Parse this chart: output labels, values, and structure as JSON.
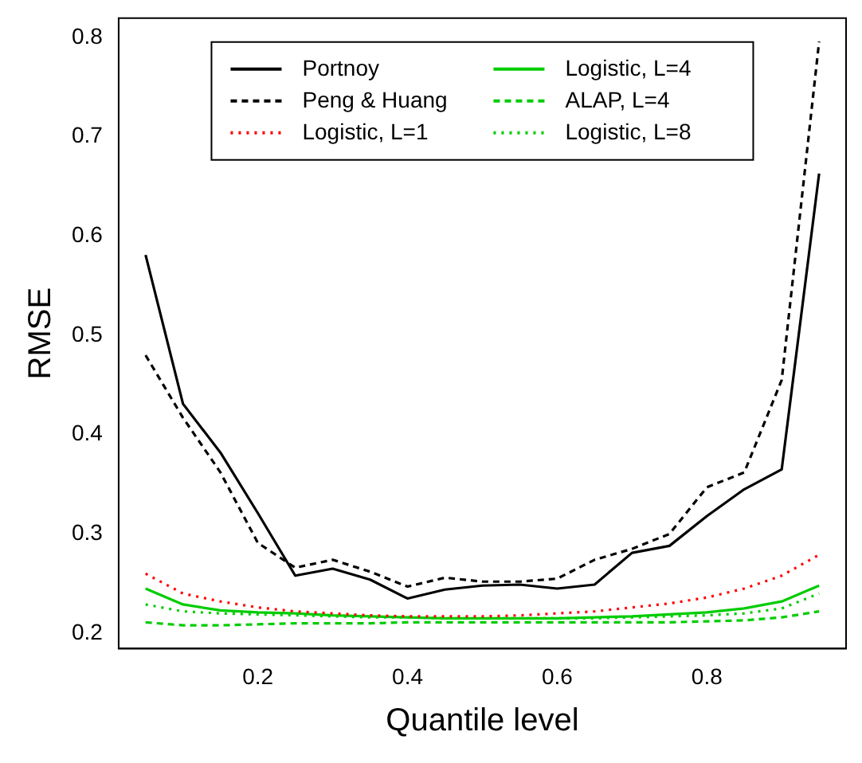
{
  "chart_data": {
    "type": "line",
    "xlabel": "Quantile level",
    "ylabel": "RMSE",
    "x": [
      0.05,
      0.1,
      0.15,
      0.2,
      0.25,
      0.3,
      0.35,
      0.4,
      0.45,
      0.5,
      0.55,
      0.6,
      0.65,
      0.7,
      0.75,
      0.8,
      0.85,
      0.9,
      0.95
    ],
    "series": [
      {
        "name": "Portnoy",
        "color": "#000000",
        "line_style": "solid",
        "values": [
          0.581,
          0.431,
          0.382,
          0.321,
          0.258,
          0.265,
          0.254,
          0.235,
          0.244,
          0.248,
          0.249,
          0.245,
          0.249,
          0.281,
          0.288,
          0.318,
          0.345,
          0.365,
          0.663
        ]
      },
      {
        "name": "Peng & Huang",
        "color": "#000000",
        "line_style": "dashed",
        "values": [
          0.48,
          0.417,
          0.362,
          0.291,
          0.266,
          0.274,
          0.262,
          0.247,
          0.256,
          0.252,
          0.252,
          0.255,
          0.274,
          0.285,
          0.3,
          0.347,
          0.362,
          0.455,
          0.796
        ]
      },
      {
        "name": "Logistic, L=1",
        "color": "#ff0000",
        "line_style": "dotted",
        "values": [
          0.26,
          0.24,
          0.232,
          0.226,
          0.222,
          0.22,
          0.218,
          0.217,
          0.217,
          0.217,
          0.218,
          0.22,
          0.222,
          0.226,
          0.23,
          0.236,
          0.245,
          0.258,
          0.279
        ]
      },
      {
        "name": "Logistic, L=4",
        "color": "#00cc00",
        "line_style": "solid",
        "values": [
          0.245,
          0.229,
          0.223,
          0.221,
          0.22,
          0.218,
          0.217,
          0.216,
          0.215,
          0.215,
          0.215,
          0.215,
          0.216,
          0.217,
          0.219,
          0.221,
          0.225,
          0.232,
          0.248
        ]
      },
      {
        "name": "ALAP, L=4",
        "color": "#00cc00",
        "line_style": "dashed",
        "values": [
          0.211,
          0.208,
          0.208,
          0.209,
          0.21,
          0.21,
          0.21,
          0.211,
          0.211,
          0.211,
          0.211,
          0.211,
          0.211,
          0.211,
          0.211,
          0.212,
          0.213,
          0.216,
          0.222
        ]
      },
      {
        "name": "Logistic, L=8",
        "color": "#00cc00",
        "line_style": "dotted",
        "values": [
          0.229,
          0.222,
          0.22,
          0.219,
          0.218,
          0.217,
          0.216,
          0.216,
          0.215,
          0.215,
          0.215,
          0.215,
          0.215,
          0.216,
          0.217,
          0.218,
          0.22,
          0.225,
          0.24
        ]
      }
    ],
    "xlim": [
      0.014,
      0.986
    ],
    "xticks": [
      0.2,
      0.4,
      0.6,
      0.8
    ],
    "ylim": [
      0.1845,
      0.8195
    ],
    "yticks": [
      0.2,
      0.3,
      0.4,
      0.5,
      0.6,
      0.7,
      0.8
    ],
    "grid": false,
    "legend": "top",
    "marker": "none"
  }
}
